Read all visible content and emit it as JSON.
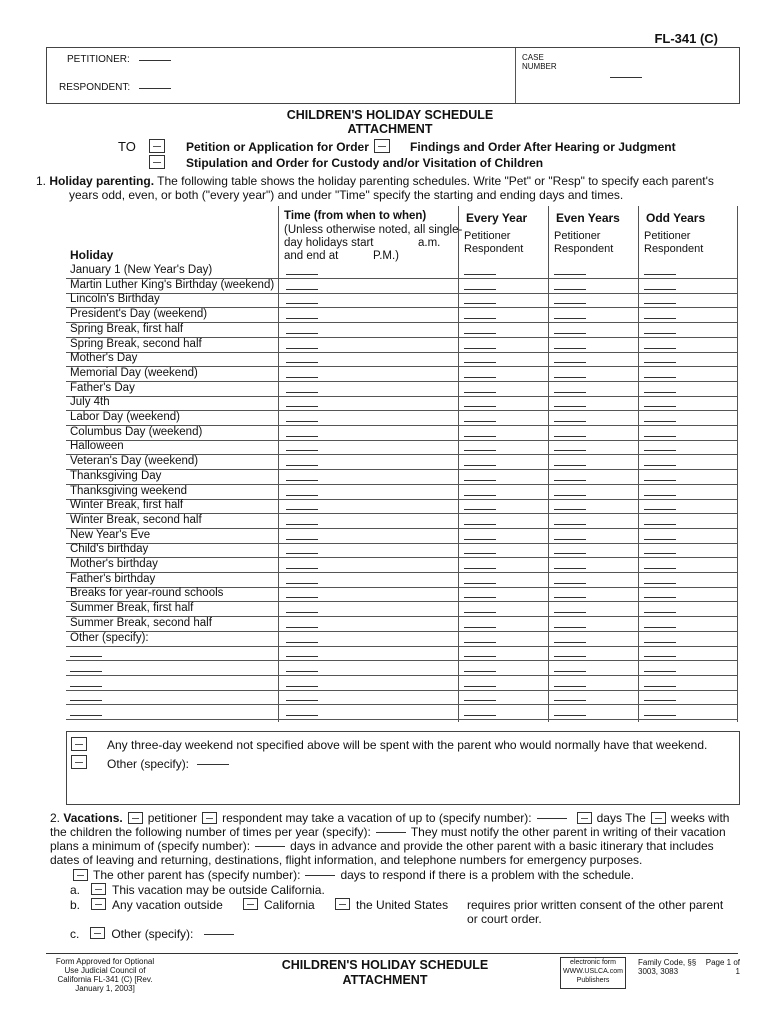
{
  "form_id": "FL-341 (C)",
  "header": {
    "petitioner_label": "PETITIONER:",
    "respondent_label": "RESPONDENT:",
    "case_number_label": "CASE NUMBER"
  },
  "title": "CHILDREN'S HOLIDAY SCHEDULE ATTACHMENT",
  "to_label": "TO",
  "attach_options": [
    "Petition or Application for Order",
    "Findings and Order After Hearing or Judgment",
    "Stipulation and Order for Custody and/or Visitation of Children"
  ],
  "section1": {
    "number": "1.",
    "heading": "Holiday parenting.",
    "text1": "The following table shows the holiday parenting schedules. Write \"Pet\" or \"Resp\" to specify each parent's",
    "text2": "years odd, even, or both (\"every year\") and under \"Time\" specify the starting and ending days and times."
  },
  "table": {
    "col_holiday": "Holiday",
    "col_time_title": "Time (from when to when)",
    "col_time_note1": "(Unless otherwise noted, all single-",
    "col_time_note2": "day holidays start",
    "col_time_note3": "and end at",
    "col_time_am": "a.m.",
    "col_time_pm": "P.M.)",
    "col_every": "Every Year",
    "col_even": "Even Years",
    "col_odd": "Odd Years",
    "sub": "Petitioner Respondent",
    "rows": [
      "January 1 (New Year's Day)",
      "Martin Luther King's Birthday (weekend)",
      "Lincoln's Birthday",
      "President's Day (weekend)",
      "Spring Break, first half",
      "Spring Break, second half",
      "Mother's Day",
      "Memorial Day (weekend)",
      "Father's Day",
      "July 4th",
      "Labor Day (weekend)",
      "Columbus Day (weekend)",
      "Halloween",
      "Veteran's Day (weekend)",
      "Thanksgiving Day",
      "Thanksgiving weekend",
      "Winter Break, first half",
      "Winter Break, second half",
      "New Year's Eve",
      "Child's birthday",
      "Mother's birthday",
      "Father's birthday",
      "Breaks for year-round schools",
      "Summer Break, first half",
      "Summer Break, second half",
      "Other (specify):",
      "",
      "",
      "",
      "",
      ""
    ]
  },
  "box2": {
    "line1": "Any three-day weekend not specified above will be spent with the parent who would normally have that weekend.",
    "line2": "Other (specify):"
  },
  "section2": {
    "number": "2.",
    "heading": "Vacations.",
    "the": "The",
    "petitioner": "petitioner",
    "respondent": "respondent may take a vacation of up to (specify number):",
    "days": "days",
    "weeks": "weeks with the children the following number of times per year (specify):",
    "notify": "They must notify the other parent in writing",
    "l2": "of their vacation plans a minimum of (specify number):",
    "l2b": "days in advance and provide the other parent with a basic itinerary",
    "l3": "that includes dates of leaving and returning, destinations, flight information, and telephone numbers for emergency purposes.",
    "l4": "The other parent has (specify number):",
    "l4b": "days to respond if there is a problem with the schedule.",
    "a": "a.",
    "a_text": "This vacation may be outside California.",
    "b": "b.",
    "b_text": "Any vacation outside",
    "b_ca": "California",
    "b_us": "the United States",
    "b_req": "requires prior written consent of the other parent or court order.",
    "c": "c.",
    "c_text": "Other (specify):"
  },
  "footer": {
    "left": "Form Approved for Optional Use Judicial Council of California FL-341 (C) [Rev. January 1, 2003]",
    "title": "CHILDREN'S HOLIDAY SCHEDULE",
    "title2": "ATTACHMENT",
    "logo": "electronic form WWW.USLCA.com Publishers",
    "code": "Family Code, §§ 3003, 3083",
    "page": "Page 1 of 1"
  }
}
